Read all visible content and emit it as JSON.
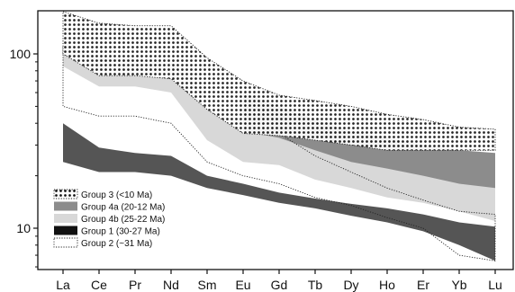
{
  "chart_data": {
    "type": "area",
    "title": "",
    "xlabel": "",
    "ylabel": "",
    "y_scale": "log",
    "ylim": [
      6,
      190
    ],
    "y_ticks": [
      {
        "value": 10,
        "label": "10"
      },
      {
        "value": 100,
        "label": "100"
      }
    ],
    "categories": [
      "La",
      "Ce",
      "Pr",
      "Nd",
      "Sm",
      "Eu",
      "Gd",
      "Tb",
      "Dy",
      "Ho",
      "Er",
      "Yb",
      "Lu"
    ],
    "grid": false,
    "legend_position": "bottom-left",
    "series": [
      {
        "name": "Group 4b (25-22 Ma)",
        "fill": "#d8d8d8",
        "pattern": "none",
        "stroke": "none",
        "upper": [
          120,
          95,
          95,
          85,
          48,
          40,
          38,
          32,
          27,
          25,
          23,
          20,
          19
        ],
        "lower": [
          85,
          65,
          65,
          60,
          32,
          24,
          23,
          19,
          17,
          15,
          14,
          12.5,
          11
        ]
      },
      {
        "name": "Group 4a (20-12 Ma)",
        "fill": "#8c8c8c",
        "pattern": "none",
        "stroke": "none",
        "upper": [
          null,
          null,
          null,
          null,
          null,
          60,
          50,
          42,
          36,
          33,
          30,
          28,
          27
        ],
        "lower": [
          null,
          null,
          null,
          null,
          null,
          36,
          33,
          28,
          24,
          22,
          20,
          18,
          17
        ]
      },
      {
        "name": "Group 1 (30-27 Ma)",
        "fill": "#555555",
        "pattern": "none",
        "stroke": "none",
        "upper": [
          40,
          29,
          27,
          26,
          20,
          18,
          16,
          14.8,
          13.8,
          13,
          12,
          10.8,
          10.2
        ],
        "lower": [
          24,
          21,
          21,
          20,
          17,
          15.5,
          14,
          13,
          11.8,
          10.8,
          9.6,
          8,
          6.5
        ]
      },
      {
        "name": "Group 2 (~31 Ma)",
        "fill": "none",
        "pattern": "none",
        "stroke": "dotted",
        "upper": [
          110,
          92,
          92,
          88,
          55,
          40,
          35,
          26,
          21,
          17,
          14.5,
          12.5,
          12
        ],
        "lower": [
          50,
          44,
          44,
          40,
          24,
          20,
          18,
          15,
          13.5,
          11.5,
          10,
          7,
          6.5
        ]
      },
      {
        "name": "Group 3 (<10 Ma)",
        "fill": "#ffffff",
        "pattern": "dots",
        "stroke": "dotted",
        "upper": [
          175,
          150,
          145,
          145,
          95,
          70,
          58,
          54,
          50,
          45,
          42,
          38,
          37
        ],
        "lower": [
          100,
          75,
          75,
          72,
          48,
          35,
          34,
          32,
          30,
          28,
          28,
          28,
          28
        ]
      }
    ],
    "legend_order": [
      "Group 3 (<10 Ma)",
      "Group 4a (20-12 Ma)",
      "Group 4b (25-22 Ma)",
      "Group 1 (30-27 Ma)",
      "Group 2 (~31 Ma)"
    ]
  }
}
